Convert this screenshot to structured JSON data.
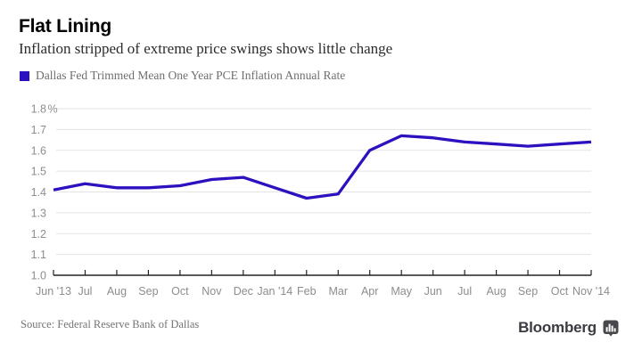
{
  "header": {
    "title": "Flat Lining",
    "subtitle": "Inflation stripped of extreme price swings shows little change"
  },
  "legend": {
    "label": "Dallas Fed Trimmed Mean One Year PCE Inflation Annual Rate",
    "swatch_color": "#2c12bf"
  },
  "chart_data": {
    "type": "line",
    "title": "Flat Lining",
    "subtitle": "Inflation stripped of extreme price swings shows little change",
    "categories": [
      "Jun '13",
      "Jul",
      "Aug",
      "Sep",
      "Oct",
      "Nov",
      "Dec",
      "Jan '14",
      "Feb",
      "Mar",
      "Apr",
      "May",
      "Jun",
      "Jul",
      "Aug",
      "Sep",
      "Oct",
      "Nov '14"
    ],
    "series": [
      {
        "name": "Dallas Fed Trimmed Mean One Year PCE Inflation Annual Rate",
        "color": "#2c12bf",
        "values": [
          1.41,
          1.44,
          1.42,
          1.42,
          1.43,
          1.46,
          1.47,
          1.42,
          1.37,
          1.39,
          1.6,
          1.67,
          1.66,
          1.64,
          1.63,
          1.62,
          1.63,
          1.64
        ]
      }
    ],
    "xlabel": "",
    "ylabel": "",
    "ylim": [
      1.0,
      1.8
    ],
    "ytick_step": 0.1,
    "ytick_labels": [
      "1.0",
      "1.1",
      "1.2",
      "1.3",
      "1.4",
      "1.5",
      "1.6",
      "1.7",
      "1.8%"
    ],
    "grid": true,
    "legend_position": "top-left",
    "colors": {
      "line": "#2c12bf",
      "grid": "#e3e3e3",
      "axis": "#222222",
      "tick_text": "#8d8d8d"
    }
  },
  "footer": {
    "source": "Source: Federal Reserve Bank of Dallas",
    "brand": "Bloomberg",
    "brand_icon": "bar-chart-icon"
  }
}
